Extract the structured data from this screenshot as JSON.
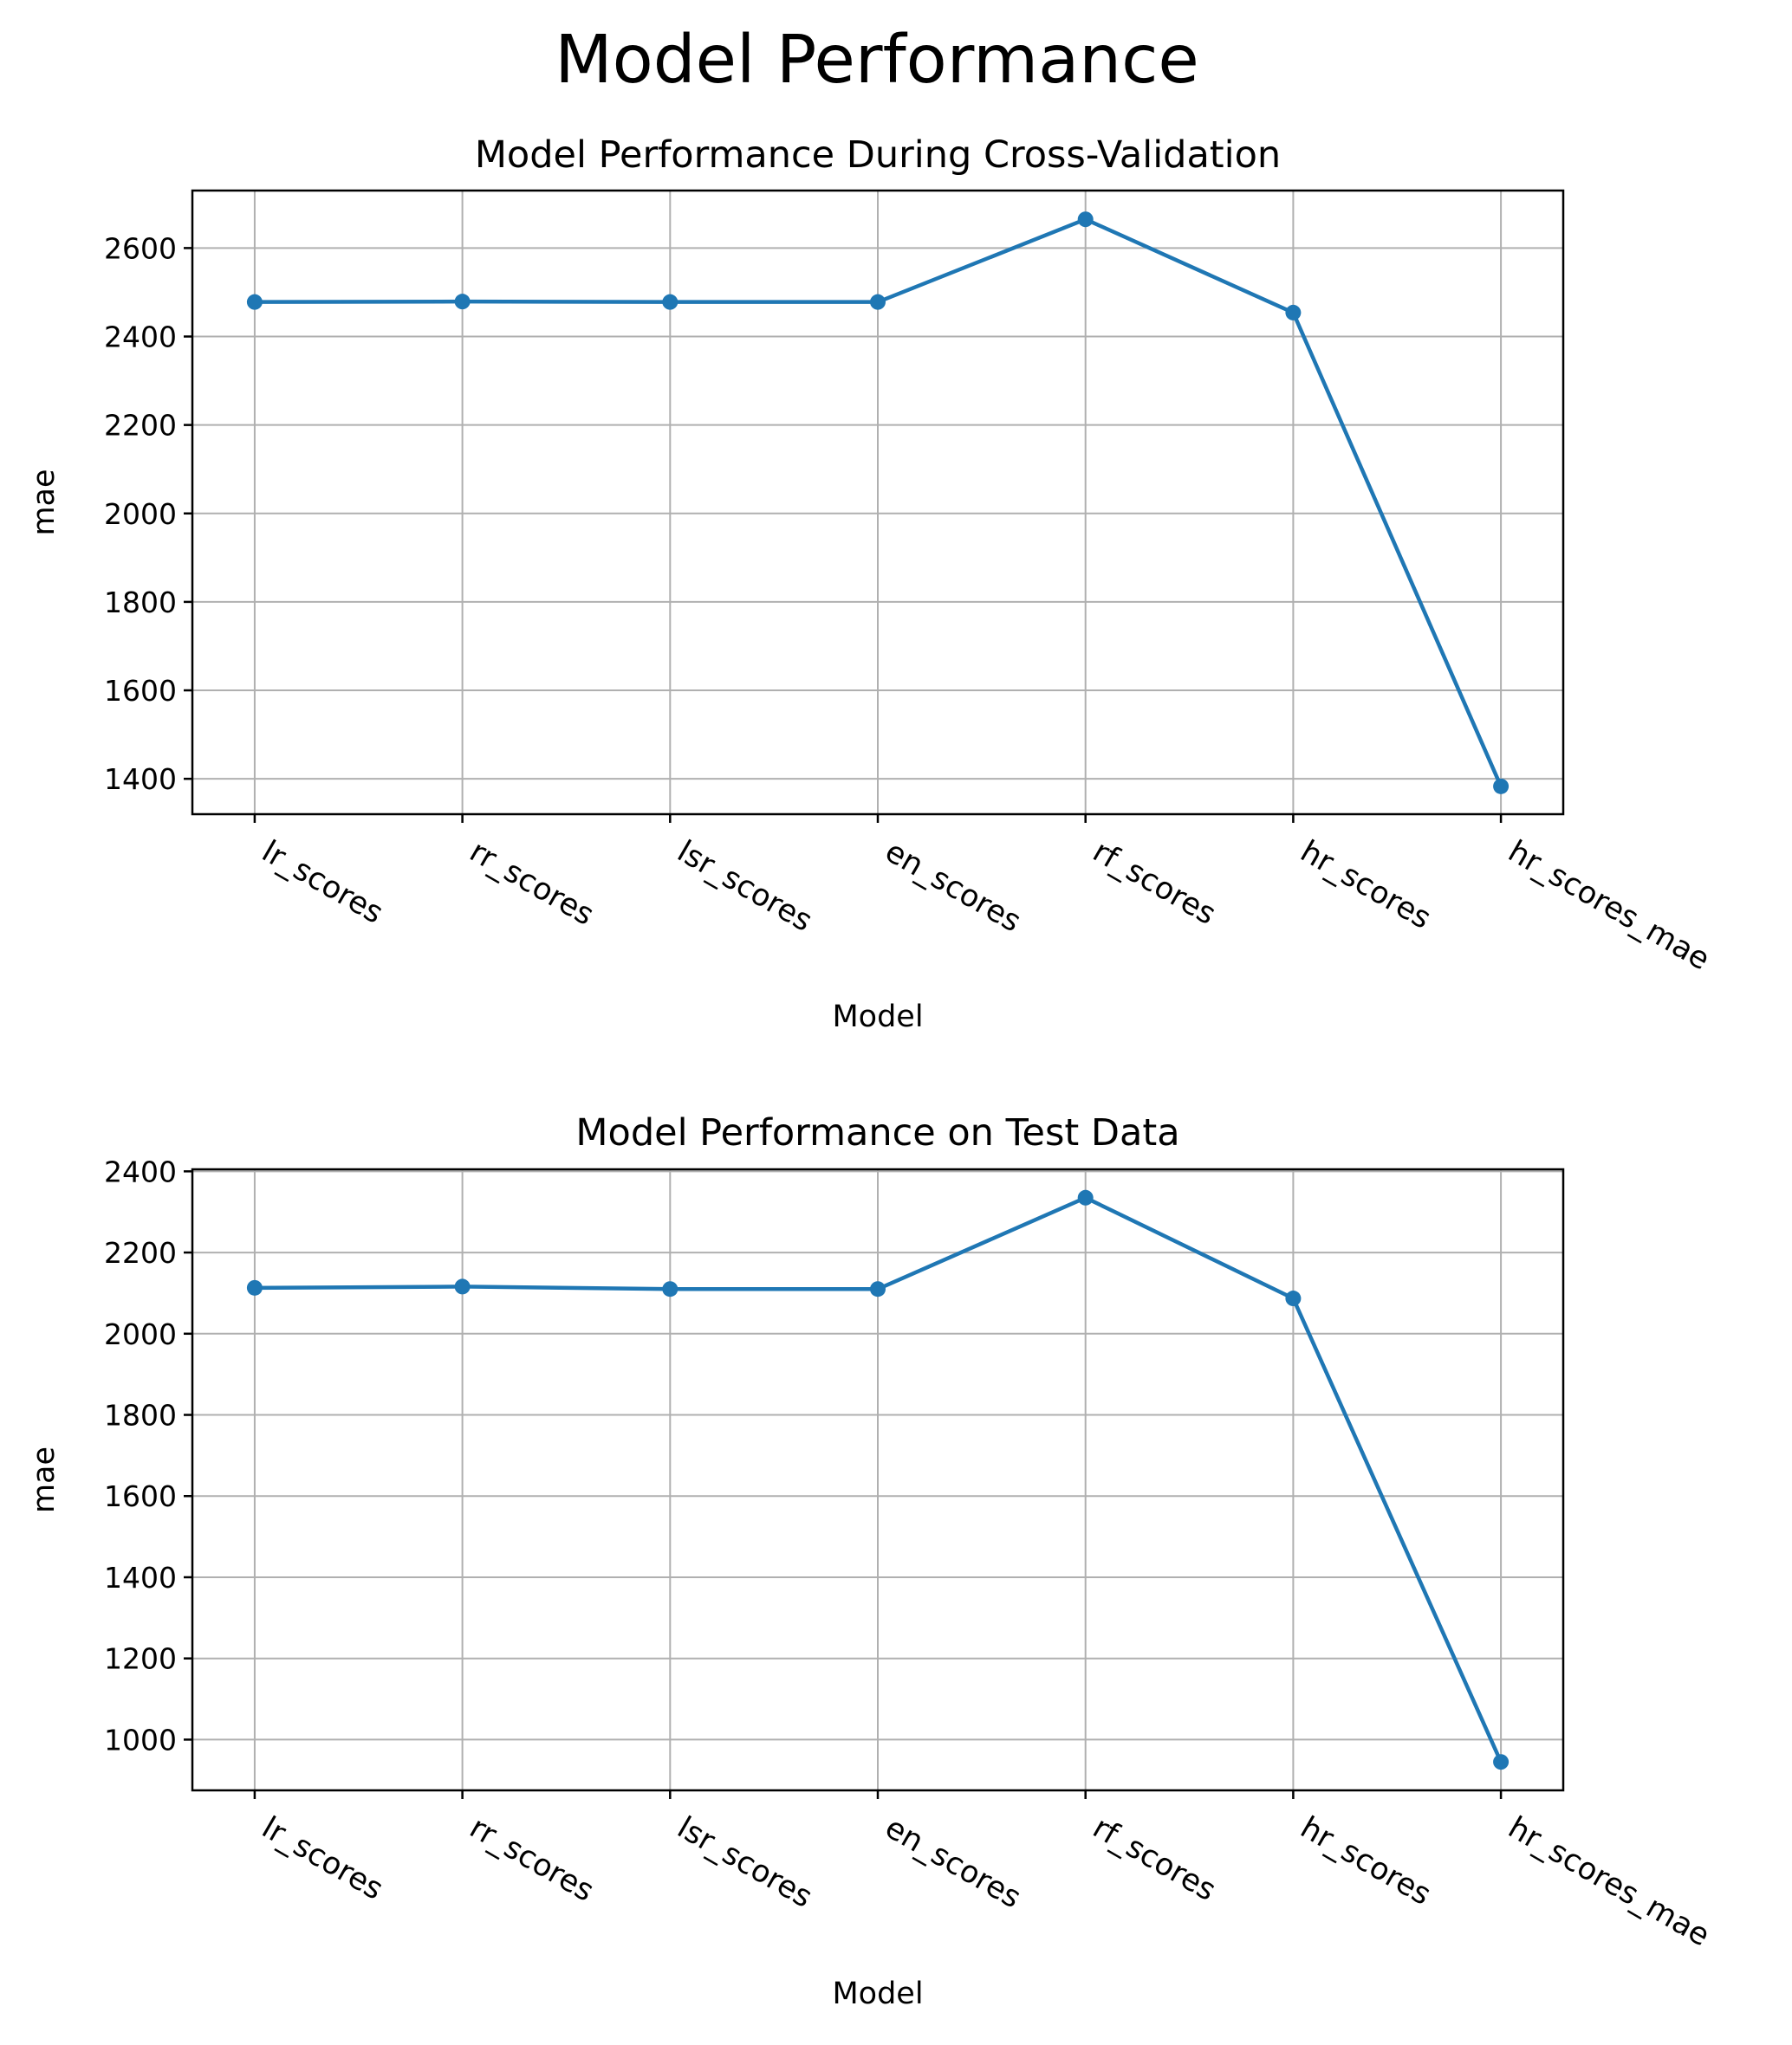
{
  "figure": {
    "title": "Model Performance"
  },
  "colors": {
    "series": "#1f77b4",
    "grid": "#b0b0b0",
    "axes": "#000000",
    "background": "#ffffff"
  },
  "chart_data": [
    {
      "type": "line",
      "title": "Model Performance During Cross-Validation",
      "xlabel": "Model",
      "ylabel": "mae",
      "categories": [
        "lr_scores",
        "rr_scores",
        "lsr_scores",
        "en_scores",
        "rf_scores",
        "hr_scores",
        "hr_scores_mae"
      ],
      "series": [
        {
          "values": [
            2478,
            2479,
            2478,
            2478,
            2665,
            2454,
            1383
          ]
        }
      ],
      "yticks": [
        1400,
        1600,
        1800,
        2000,
        2200,
        2400,
        2600
      ],
      "ylim": [
        1320,
        2730
      ],
      "grid": true,
      "marker": "circle"
    },
    {
      "type": "line",
      "title": "Model Performance on Test Data",
      "xlabel": "Model",
      "ylabel": "mae",
      "categories": [
        "lr_scores",
        "rr_scores",
        "lsr_scores",
        "en_scores",
        "rf_scores",
        "hr_scores",
        "hr_scores_mae"
      ],
      "series": [
        {
          "values": [
            2113,
            2116,
            2110,
            2110,
            2335,
            2087,
            945
          ]
        }
      ],
      "yticks": [
        1000,
        1200,
        1400,
        1600,
        1800,
        2000,
        2200,
        2400
      ],
      "ylim": [
        875,
        2405
      ],
      "grid": true,
      "marker": "circle"
    }
  ]
}
